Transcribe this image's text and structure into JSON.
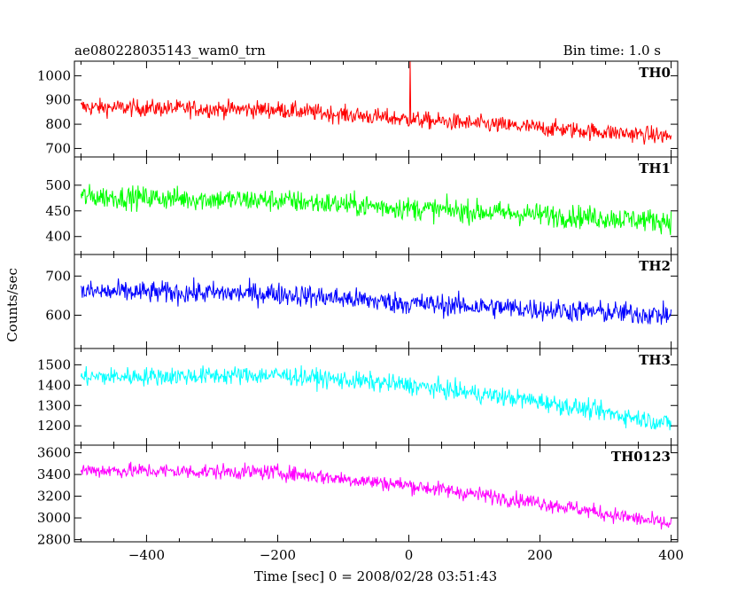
{
  "title_left": "ae080228035143_wam0_trn",
  "title_right": "Bin time: 1.0 s",
  "chart_data": {
    "type": "line",
    "ylabel": "Counts/sec",
    "xlabel": "Time [sec] 0 = 2008/02/28 03:51:43",
    "xlim": [
      -510,
      410
    ],
    "x_range": [
      -500,
      400
    ],
    "xticks": [
      -400,
      -200,
      0,
      200,
      400
    ],
    "grid": false,
    "panels": [
      {
        "name": "TH0",
        "color": "#ff0000",
        "ylim": [
          665,
          1060
        ],
        "yticks": [
          700,
          800,
          900,
          1000
        ],
        "trend": [
          [
            -500,
            870
          ],
          [
            -200,
            860
          ],
          [
            0,
            820
          ],
          [
            400,
            750
          ]
        ],
        "noise": 35,
        "spikes": [
          {
            "x": 2,
            "y": 1060
          }
        ]
      },
      {
        "name": "TH1",
        "color": "#00ff00",
        "ylim": [
          365,
          555
        ],
        "yticks": [
          400,
          450,
          500
        ],
        "trend": [
          [
            -500,
            478
          ],
          [
            -200,
            470
          ],
          [
            0,
            455
          ],
          [
            400,
            430
          ]
        ],
        "noise": 22,
        "spikes": []
      },
      {
        "name": "TH2",
        "color": "#0000ff",
        "ylim": [
          515,
          755
        ],
        "yticks": [
          600,
          700
        ],
        "trend": [
          [
            -500,
            660
          ],
          [
            -200,
            655
          ],
          [
            0,
            630
          ],
          [
            400,
            600
          ]
        ],
        "noise": 28,
        "spikes": []
      },
      {
        "name": "TH3",
        "color": "#00ffff",
        "ylim": [
          1105,
          1580
        ],
        "yticks": [
          1200,
          1300,
          1400,
          1500
        ],
        "trend": [
          [
            -500,
            1440
          ],
          [
            -200,
            1450
          ],
          [
            0,
            1400
          ],
          [
            200,
            1320
          ],
          [
            400,
            1210
          ]
        ],
        "noise": 45,
        "spikes": []
      },
      {
        "name": "TH0123",
        "color": "#ff00ff",
        "ylim": [
          2780,
          3670
        ],
        "yticks": [
          2800,
          3000,
          3200,
          3400,
          3600
        ],
        "trend": [
          [
            -500,
            3440
          ],
          [
            -200,
            3420
          ],
          [
            0,
            3300
          ],
          [
            200,
            3140
          ],
          [
            400,
            2940
          ]
        ],
        "noise": 70,
        "spikes": []
      }
    ]
  }
}
